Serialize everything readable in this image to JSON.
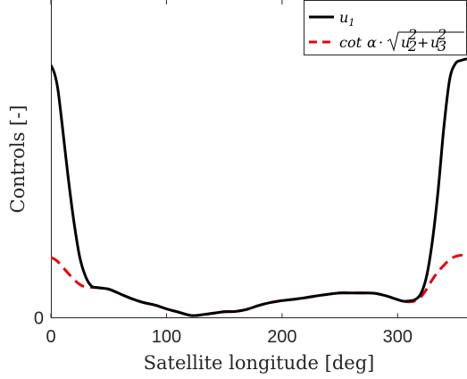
{
  "chart_data": {
    "type": "line",
    "xlabel": "Satellite longitude [deg]",
    "ylabel": "Controls [-]",
    "xlim": [
      0,
      360
    ],
    "ylim": [
      0,
      1
    ],
    "x_ticks": [
      "0",
      "100",
      "200",
      "300"
    ],
    "x_tick_values": [
      0,
      100,
      200,
      300
    ],
    "y_ticks": [
      "0"
    ],
    "y_tick_values": [
      0
    ],
    "grid": false,
    "legend_placement": "top-right",
    "series": [
      {
        "name": "u1",
        "color": "#000000",
        "style": "solid",
        "x": [
          0,
          3,
          6,
          10,
          15,
          20,
          25,
          30,
          35,
          40,
          50,
          60,
          70,
          80,
          90,
          100,
          110,
          120,
          125,
          130,
          140,
          150,
          160,
          170,
          180,
          190,
          200,
          210,
          220,
          230,
          240,
          250,
          260,
          270,
          280,
          290,
          300,
          305,
          310,
          315,
          320,
          325,
          330,
          335,
          340,
          345,
          350,
          355,
          360
        ],
        "y": [
          0.795,
          0.77,
          0.72,
          0.6,
          0.44,
          0.3,
          0.19,
          0.13,
          0.1,
          0.095,
          0.09,
          0.075,
          0.06,
          0.048,
          0.04,
          0.028,
          0.018,
          0.008,
          0.007,
          0.009,
          0.014,
          0.019,
          0.02,
          0.027,
          0.039,
          0.048,
          0.054,
          0.058,
          0.063,
          0.069,
          0.074,
          0.078,
          0.078,
          0.078,
          0.077,
          0.069,
          0.057,
          0.052,
          0.053,
          0.057,
          0.075,
          0.13,
          0.24,
          0.4,
          0.6,
          0.75,
          0.8,
          0.81,
          0.815
        ]
      },
      {
        "name": "cot α · √(u2² + u3²)",
        "color": "#e8000b",
        "style": "dashed",
        "x": [
          0,
          5,
          10,
          15,
          20,
          25,
          30,
          40,
          50,
          60,
          70,
          80,
          90,
          100,
          110,
          120,
          125,
          130,
          140,
          150,
          160,
          170,
          180,
          190,
          200,
          210,
          220,
          230,
          240,
          250,
          260,
          270,
          280,
          290,
          300,
          305,
          310,
          315,
          320,
          325,
          330,
          335,
          340,
          345,
          350,
          355,
          360
        ],
        "y": [
          0.19,
          0.18,
          0.16,
          0.14,
          0.12,
          0.105,
          0.097,
          0.095,
          0.09,
          0.075,
          0.06,
          0.048,
          0.04,
          0.028,
          0.018,
          0.008,
          0.007,
          0.009,
          0.014,
          0.019,
          0.02,
          0.027,
          0.039,
          0.048,
          0.054,
          0.058,
          0.063,
          0.069,
          0.074,
          0.078,
          0.078,
          0.078,
          0.077,
          0.069,
          0.057,
          0.052,
          0.05,
          0.053,
          0.065,
          0.09,
          0.12,
          0.145,
          0.165,
          0.183,
          0.193,
          0.197,
          0.198
        ]
      }
    ]
  }
}
